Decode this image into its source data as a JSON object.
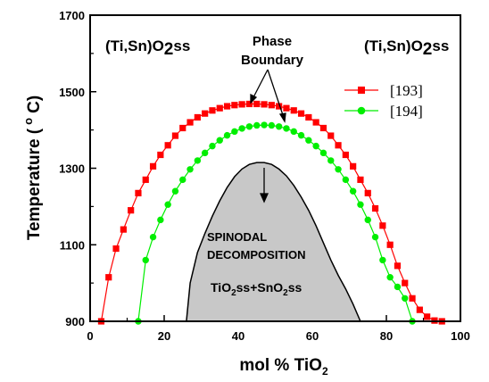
{
  "chart_data": {
    "type": "scatter",
    "xlabel_main": "mol % TiO",
    "xlabel_sub": "2",
    "ylabel_main": "Temperature (",
    "ylabel_sup": "o",
    "ylabel_end": "C)",
    "xlim": [
      0,
      100
    ],
    "ylim": [
      900,
      1700
    ],
    "xticks": [
      "0",
      "20",
      "40",
      "60",
      "80",
      "100"
    ],
    "yticks": [
      "900",
      "1100",
      "1300",
      "1500",
      "1700"
    ],
    "legend_position": "right",
    "series": [
      {
        "name": "[193]",
        "color": "#ff0000",
        "marker": "square",
        "points": [
          [
            3,
            900
          ],
          [
            5,
            1015
          ],
          [
            7,
            1090
          ],
          [
            9,
            1140
          ],
          [
            11,
            1190
          ],
          [
            13,
            1235
          ],
          [
            15,
            1270
          ],
          [
            17,
            1305
          ],
          [
            19,
            1335
          ],
          [
            21,
            1360
          ],
          [
            23,
            1385
          ],
          [
            25,
            1405
          ],
          [
            27,
            1420
          ],
          [
            29,
            1433
          ],
          [
            31,
            1443
          ],
          [
            33,
            1451
          ],
          [
            35,
            1457
          ],
          [
            37,
            1462
          ],
          [
            39,
            1465
          ],
          [
            41,
            1467
          ],
          [
            43,
            1468
          ],
          [
            45,
            1468
          ],
          [
            47,
            1467
          ],
          [
            49,
            1465
          ],
          [
            51,
            1462
          ],
          [
            53,
            1457
          ],
          [
            55,
            1451
          ],
          [
            57,
            1443
          ],
          [
            59,
            1433
          ],
          [
            61,
            1420
          ],
          [
            63,
            1405
          ],
          [
            65,
            1385
          ],
          [
            67,
            1360
          ],
          [
            69,
            1335
          ],
          [
            71,
            1305
          ],
          [
            73,
            1270
          ],
          [
            75,
            1235
          ],
          [
            77,
            1195
          ],
          [
            79,
            1150
          ],
          [
            81,
            1100
          ],
          [
            83,
            1045
          ],
          [
            85,
            1000
          ],
          [
            87,
            960
          ],
          [
            89,
            930
          ],
          [
            91,
            912
          ],
          [
            93,
            902
          ],
          [
            95,
            900
          ]
        ]
      },
      {
        "name": "[194]",
        "color": "#00ee00",
        "marker": "circle",
        "points": [
          [
            13,
            900
          ],
          [
            15,
            1060
          ],
          [
            17,
            1120
          ],
          [
            19,
            1165
          ],
          [
            21,
            1205
          ],
          [
            23,
            1240
          ],
          [
            25,
            1270
          ],
          [
            27,
            1297
          ],
          [
            29,
            1320
          ],
          [
            31,
            1340
          ],
          [
            33,
            1358
          ],
          [
            35,
            1373
          ],
          [
            37,
            1386
          ],
          [
            39,
            1396
          ],
          [
            41,
            1404
          ],
          [
            43,
            1409
          ],
          [
            45,
            1412
          ],
          [
            47,
            1413
          ],
          [
            49,
            1412
          ],
          [
            51,
            1409
          ],
          [
            53,
            1404
          ],
          [
            55,
            1396
          ],
          [
            57,
            1386
          ],
          [
            59,
            1373
          ],
          [
            61,
            1358
          ],
          [
            63,
            1340
          ],
          [
            65,
            1320
          ],
          [
            67,
            1297
          ],
          [
            69,
            1270
          ],
          [
            71,
            1240
          ],
          [
            73,
            1205
          ],
          [
            75,
            1165
          ],
          [
            77,
            1120
          ],
          [
            79,
            1060
          ],
          [
            81,
            1015
          ],
          [
            83,
            990
          ],
          [
            85,
            960
          ],
          [
            87,
            900
          ]
        ]
      }
    ],
    "spinodal_region": {
      "fill": "#c8c8c8",
      "boundary": [
        [
          26,
          900
        ],
        [
          27,
          1000
        ],
        [
          29,
          1080
        ],
        [
          31,
          1130
        ],
        [
          33,
          1175
        ],
        [
          35,
          1215
        ],
        [
          37,
          1250
        ],
        [
          39,
          1278
        ],
        [
          41,
          1298
        ],
        [
          43,
          1310
        ],
        [
          45,
          1315
        ],
        [
          47,
          1315
        ],
        [
          49,
          1310
        ],
        [
          51,
          1298
        ],
        [
          53,
          1280
        ],
        [
          55,
          1255
        ],
        [
          57,
          1225
        ],
        [
          59,
          1190
        ],
        [
          61,
          1150
        ],
        [
          63,
          1105
        ],
        [
          65,
          1060
        ],
        [
          67,
          1020
        ],
        [
          69,
          985
        ],
        [
          71,
          945
        ],
        [
          73,
          900
        ]
      ]
    },
    "annotations": {
      "left_phase_a": "(Ti,Sn)O",
      "left_phase_b": "2",
      "left_phase_c": "ss",
      "right_phase_a": "(Ti,Sn)O",
      "right_phase_b": "2",
      "right_phase_c": "ss",
      "phase_line1": "Phase",
      "phase_line2": "Boundary",
      "spinodal_line1": "SPINODAL",
      "spinodal_line2": "DECOMPOSITION",
      "mix_a": "TiO",
      "mix_b": "2",
      "mix_c": "ss+SnO",
      "mix_d": "2",
      "mix_e": "ss"
    }
  }
}
